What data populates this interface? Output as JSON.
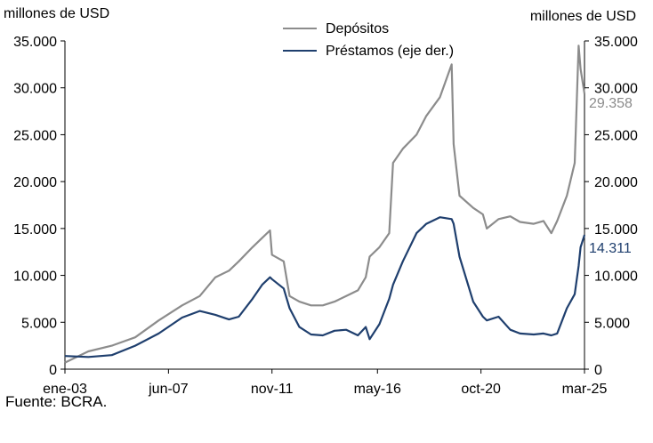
{
  "chart_data": {
    "type": "line",
    "title": "",
    "source": "Fuente: BCRA.",
    "y_left": {
      "unit_label": "millones de USD",
      "lim": [
        0,
        35000
      ],
      "ticks": [
        0,
        5000,
        10000,
        15000,
        20000,
        25000,
        30000,
        35000
      ],
      "tick_labels": [
        "0",
        "5.000",
        "10.000",
        "15.000",
        "20.000",
        "25.000",
        "30.000",
        "35.000"
      ]
    },
    "y_right": {
      "unit_label": "millones de USD",
      "lim": [
        0,
        35000
      ],
      "ticks": [
        0,
        5000,
        10000,
        15000,
        20000,
        25000,
        30000,
        35000
      ],
      "tick_labels": [
        "0",
        "5.000",
        "10.000",
        "15.000",
        "20.000",
        "25.000",
        "30.000",
        "35.000"
      ]
    },
    "x_axis": {
      "range": [
        "2003-01",
        "2025-03"
      ],
      "tick_dates": [
        "2003-01",
        "2007-06",
        "2011-11",
        "2016-05",
        "2020-10",
        "2025-03"
      ],
      "tick_labels": [
        "ene-03",
        "jun-07",
        "nov-11",
        "may-16",
        "oct-20",
        "mar-25"
      ]
    },
    "legend": {
      "placement": "top-center"
    },
    "series": [
      {
        "name": "Depósitos",
        "axis": "left",
        "color": "#8c8c8c",
        "last_value_label": "29.358",
        "points": [
          [
            "2003-01",
            700
          ],
          [
            "2004-01",
            1900
          ],
          [
            "2005-01",
            2500
          ],
          [
            "2006-01",
            3400
          ],
          [
            "2007-01",
            5200
          ],
          [
            "2008-01",
            6800
          ],
          [
            "2008-10",
            7800
          ],
          [
            "2009-06",
            9800
          ],
          [
            "2010-01",
            10500
          ],
          [
            "2010-06",
            11500
          ],
          [
            "2011-01",
            13000
          ],
          [
            "2011-06",
            14000
          ],
          [
            "2011-10",
            14800
          ],
          [
            "2011-11",
            12200
          ],
          [
            "2012-05",
            11500
          ],
          [
            "2012-08",
            7800
          ],
          [
            "2013-01",
            7200
          ],
          [
            "2013-07",
            6800
          ],
          [
            "2014-01",
            6800
          ],
          [
            "2014-07",
            7200
          ],
          [
            "2015-01",
            7800
          ],
          [
            "2015-07",
            8400
          ],
          [
            "2015-11",
            9800
          ],
          [
            "2016-01",
            12000
          ],
          [
            "2016-06",
            13000
          ],
          [
            "2016-11",
            14500
          ],
          [
            "2017-01",
            22000
          ],
          [
            "2017-06",
            23500
          ],
          [
            "2018-01",
            25000
          ],
          [
            "2018-06",
            27000
          ],
          [
            "2019-01",
            29000
          ],
          [
            "2019-07",
            32500
          ],
          [
            "2019-08",
            24000
          ],
          [
            "2019-11",
            18500
          ],
          [
            "2020-06",
            17200
          ],
          [
            "2020-11",
            16500
          ],
          [
            "2021-01",
            15000
          ],
          [
            "2021-07",
            16000
          ],
          [
            "2022-01",
            16300
          ],
          [
            "2022-06",
            15700
          ],
          [
            "2023-01",
            15500
          ],
          [
            "2023-06",
            15800
          ],
          [
            "2023-10",
            14500
          ],
          [
            "2024-01",
            15800
          ],
          [
            "2024-06",
            18500
          ],
          [
            "2024-10",
            22000
          ],
          [
            "2024-12",
            34500
          ],
          [
            "2025-01",
            32000
          ],
          [
            "2025-03",
            29358
          ]
        ]
      },
      {
        "name": "Préstamos (eje der.)",
        "axis": "right",
        "color": "#1f3f6e",
        "last_value_label": "14.311",
        "points": [
          [
            "2003-01",
            1400
          ],
          [
            "2004-01",
            1300
          ],
          [
            "2005-01",
            1500
          ],
          [
            "2006-01",
            2500
          ],
          [
            "2007-01",
            3800
          ],
          [
            "2008-01",
            5500
          ],
          [
            "2008-10",
            6200
          ],
          [
            "2009-06",
            5800
          ],
          [
            "2010-01",
            5300
          ],
          [
            "2010-06",
            5600
          ],
          [
            "2011-01",
            7500
          ],
          [
            "2011-06",
            9000
          ],
          [
            "2011-10",
            9800
          ],
          [
            "2011-11",
            9600
          ],
          [
            "2012-05",
            8600
          ],
          [
            "2012-08",
            6500
          ],
          [
            "2013-01",
            4500
          ],
          [
            "2013-07",
            3700
          ],
          [
            "2014-01",
            3600
          ],
          [
            "2014-07",
            4100
          ],
          [
            "2015-01",
            4200
          ],
          [
            "2015-07",
            3600
          ],
          [
            "2015-11",
            4500
          ],
          [
            "2016-01",
            3200
          ],
          [
            "2016-06",
            4800
          ],
          [
            "2016-11",
            7500
          ],
          [
            "2017-01",
            9000
          ],
          [
            "2017-06",
            11500
          ],
          [
            "2018-01",
            14500
          ],
          [
            "2018-06",
            15500
          ],
          [
            "2019-01",
            16200
          ],
          [
            "2019-07",
            16000
          ],
          [
            "2019-08",
            15500
          ],
          [
            "2019-11",
            12000
          ],
          [
            "2020-06",
            7200
          ],
          [
            "2020-11",
            5600
          ],
          [
            "2021-01",
            5200
          ],
          [
            "2021-07",
            5600
          ],
          [
            "2022-01",
            4200
          ],
          [
            "2022-06",
            3800
          ],
          [
            "2023-01",
            3700
          ],
          [
            "2023-06",
            3800
          ],
          [
            "2023-10",
            3600
          ],
          [
            "2024-01",
            3800
          ],
          [
            "2024-06",
            6500
          ],
          [
            "2024-10",
            8000
          ],
          [
            "2024-12",
            11000
          ],
          [
            "2025-01",
            13000
          ],
          [
            "2025-03",
            14311
          ]
        ]
      }
    ]
  }
}
